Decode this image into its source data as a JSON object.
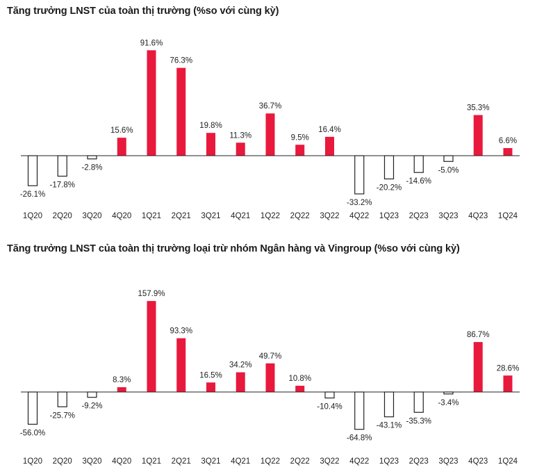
{
  "colors": {
    "positive": "#e8193c",
    "negative_fill": "#ffffff",
    "negative_stroke": "#222222",
    "axis": "#222222"
  },
  "chart_data": [
    {
      "type": "bar",
      "title": "Tăng trưởng LNST của toàn thị trường (%so với cùng kỳ)",
      "categories": [
        "1Q20",
        "2Q20",
        "3Q20",
        "4Q20",
        "1Q21",
        "2Q21",
        "3Q21",
        "4Q21",
        "1Q22",
        "2Q22",
        "3Q22",
        "4Q22",
        "1Q23",
        "2Q23",
        "3Q23",
        "4Q23",
        "1Q24"
      ],
      "values": [
        -26.1,
        -17.8,
        -2.8,
        15.6,
        91.6,
        76.3,
        19.8,
        11.3,
        36.7,
        9.5,
        16.4,
        -33.2,
        -20.2,
        -14.6,
        -5.0,
        35.3,
        6.6
      ],
      "labels": [
        "-26.1%",
        "-17.8%",
        "-2.8%",
        "15.6%",
        "91.6%",
        "76.3%",
        "19.8%",
        "11.3%",
        "36.7%",
        "9.5%",
        "16.4%",
        "-33.2%",
        "-20.2%",
        "-14.6%",
        "-5.0%",
        "35.3%",
        "6.6%"
      ],
      "xlabel": "",
      "ylabel": "",
      "grid": false
    },
    {
      "type": "bar",
      "title": "Tăng trưởng LNST của toàn thị trường loại trừ nhóm Ngân hàng và Vingroup (%so với cùng kỳ)",
      "categories": [
        "1Q20",
        "2Q20",
        "3Q20",
        "4Q20",
        "1Q21",
        "2Q21",
        "3Q21",
        "4Q21",
        "1Q22",
        "2Q22",
        "3Q22",
        "4Q22",
        "1Q23",
        "2Q23",
        "3Q23",
        "4Q23",
        "1Q24"
      ],
      "values": [
        -56.0,
        -25.7,
        -9.2,
        8.3,
        157.9,
        93.3,
        16.5,
        34.2,
        49.7,
        10.8,
        -10.4,
        -64.8,
        -43.1,
        -35.3,
        -3.4,
        86.7,
        28.6
      ],
      "labels": [
        "-56.0%",
        "-25.7%",
        "-9.2%",
        "8.3%",
        "157.9%",
        "93.3%",
        "16.5%",
        "34.2%",
        "49.7%",
        "10.8%",
        "-10.4%",
        "-64.8%",
        "-43.1%",
        "-35.3%",
        "-3.4%",
        "86.7%",
        "28.6%"
      ],
      "xlabel": "",
      "ylabel": "",
      "grid": false
    }
  ]
}
